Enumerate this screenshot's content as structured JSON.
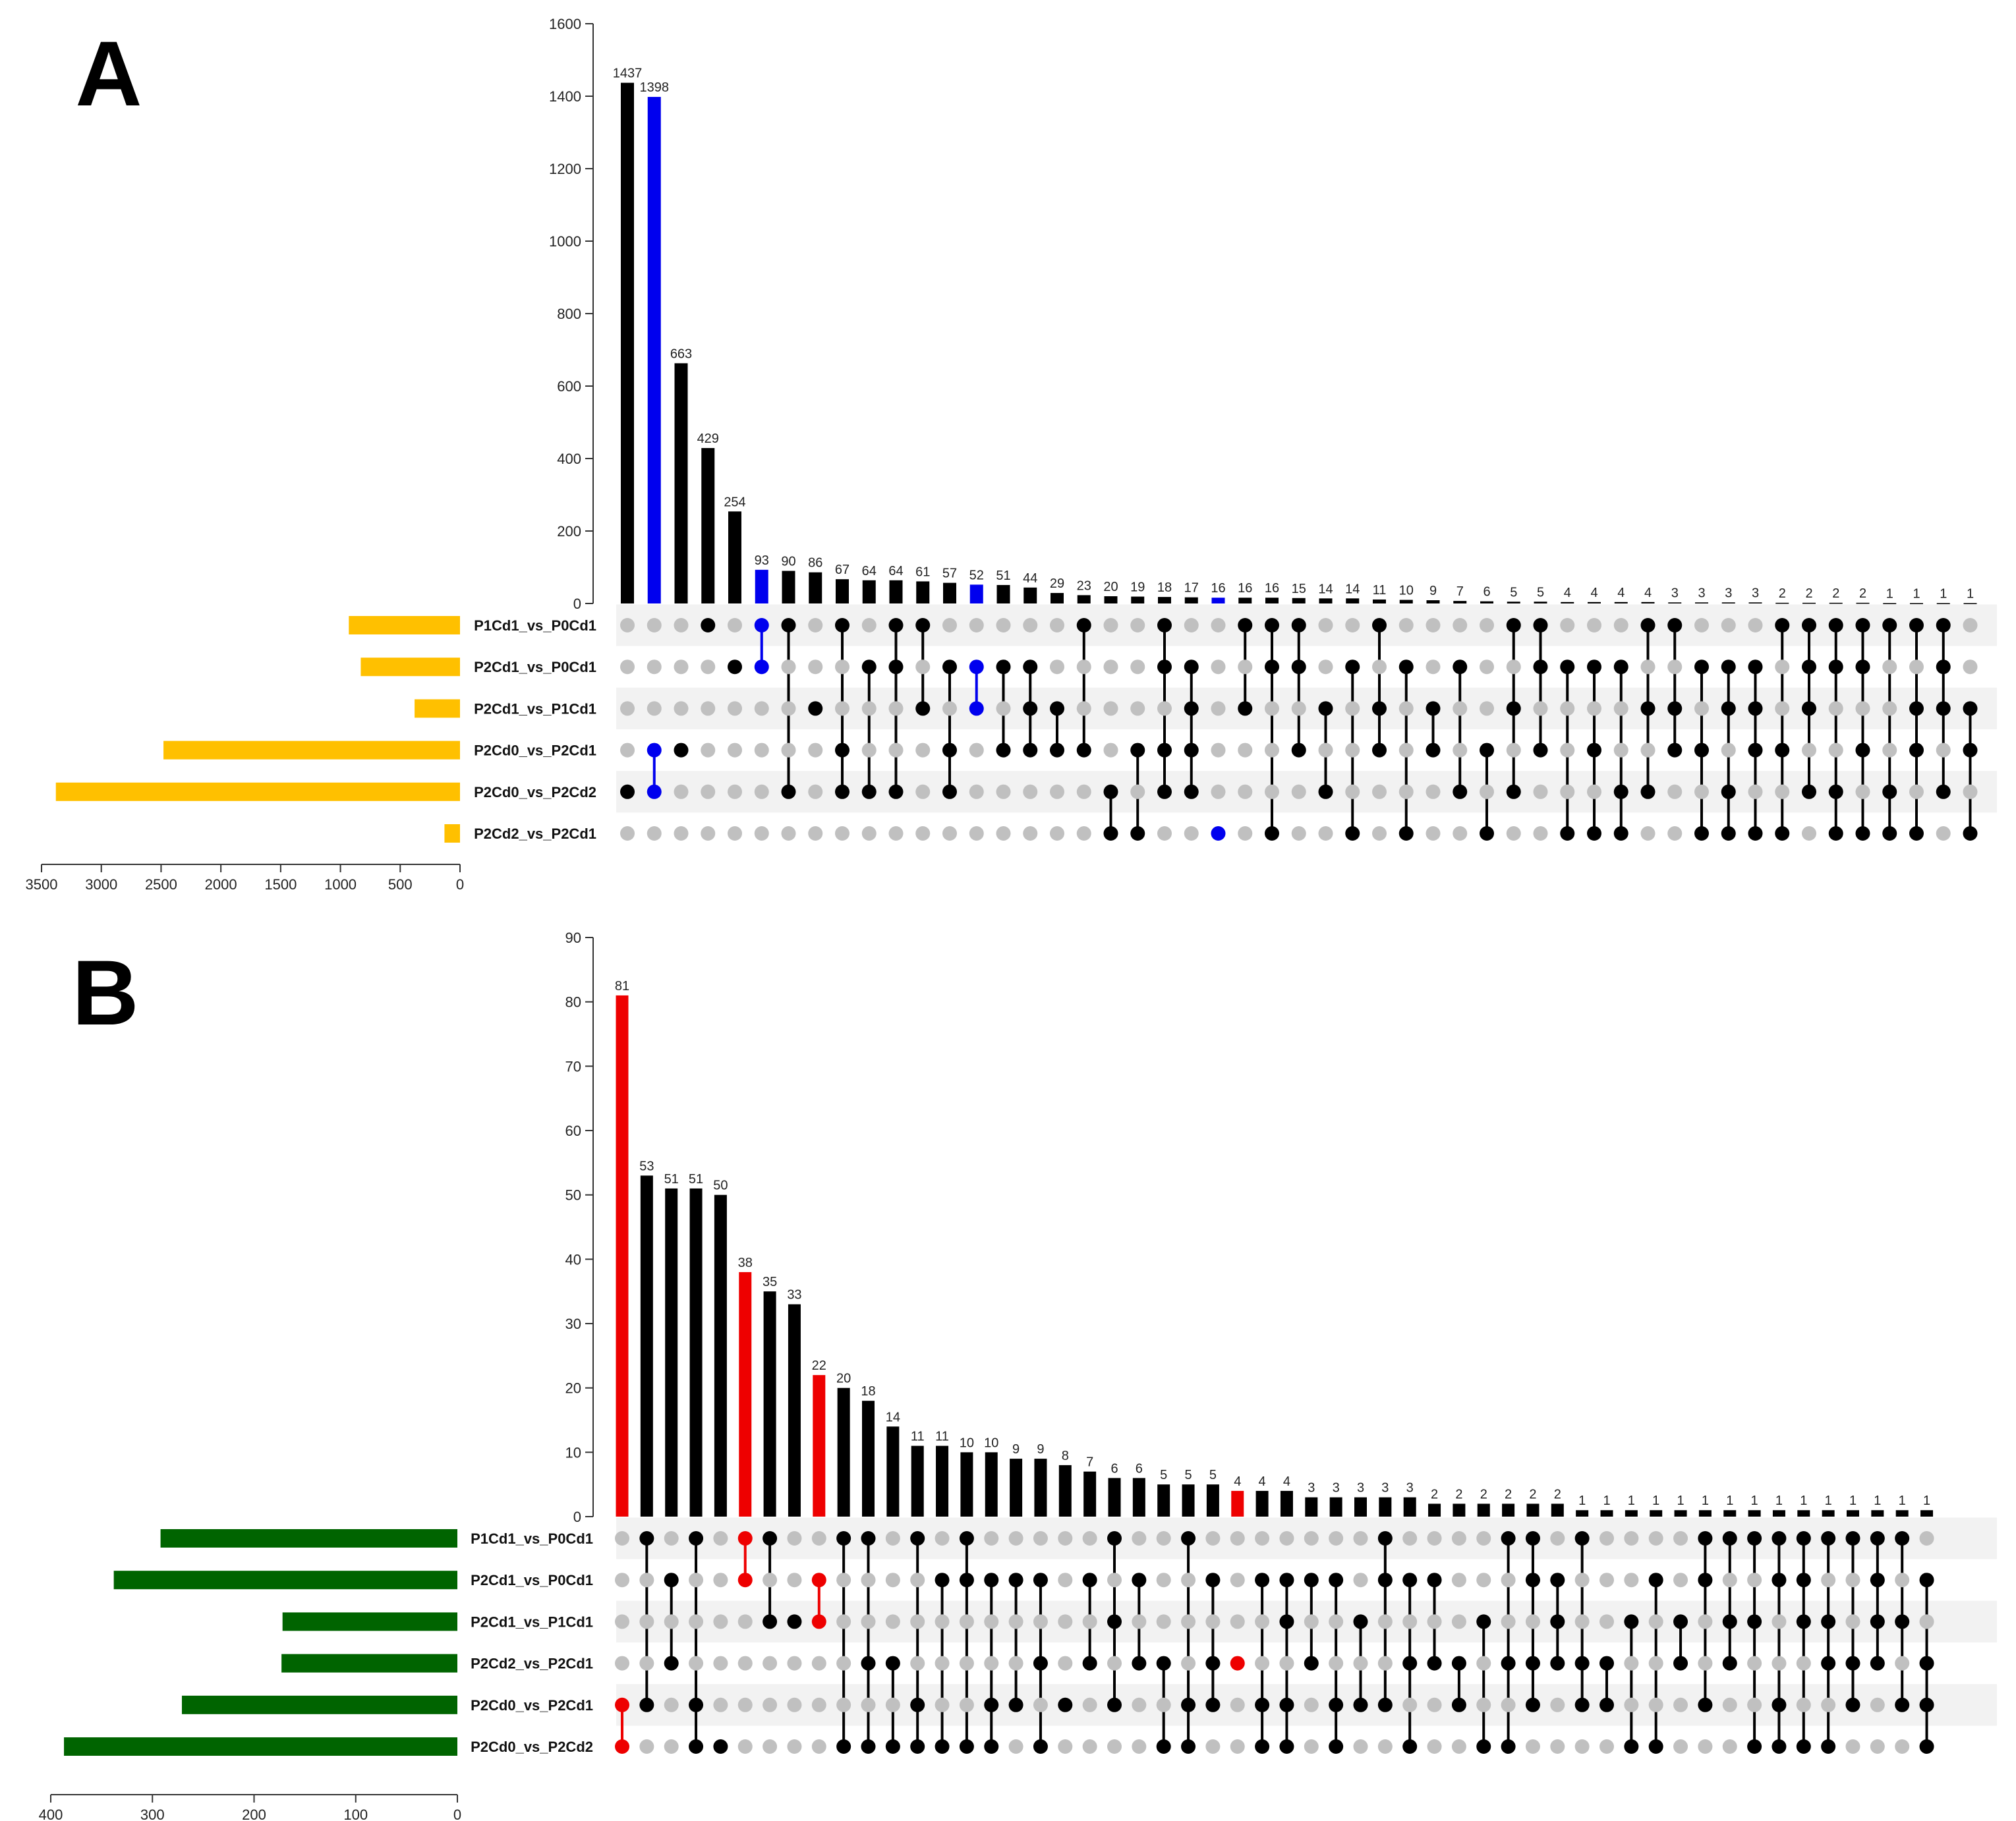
{
  "colors": {
    "bar": "#000000",
    "dot_on": "#000000",
    "dot_off": "#c0c0c0",
    "stripe": "#f2f2f2",
    "highlight_A": "#0000ee",
    "highlight_B": "#ee0000",
    "setbar_A": "#ffc000",
    "setbar_B": "#006400"
  },
  "chart_data": [
    {
      "type": "upset",
      "panel": "A",
      "title": "A",
      "ylim": [
        0,
        1600
      ],
      "yticks": [
        0,
        200,
        400,
        600,
        800,
        1000,
        1200,
        1400,
        1600
      ],
      "sets": [
        "P1Cd1_vs_P0Cd1",
        "P2Cd1_vs_P0Cd1",
        "P2Cd1_vs_P1Cd1",
        "P2Cd0_vs_P2Cd1",
        "P2Cd0_vs_P2Cd2",
        "P2Cd2_vs_P2Cd1"
      ],
      "set_sizes": [
        930,
        830,
        380,
        2480,
        3380,
        130
      ],
      "set_axis": {
        "max": 3500,
        "ticks": [
          3500,
          3000,
          2500,
          2000,
          1500,
          1000,
          500,
          0
        ]
      },
      "intersections": [
        {
          "value": 1437,
          "sets": [
            4
          ]
        },
        {
          "value": 1398,
          "sets": [
            3,
            4
          ],
          "highlight": true
        },
        {
          "value": 663,
          "sets": [
            3
          ]
        },
        {
          "value": 429,
          "sets": [
            0
          ]
        },
        {
          "value": 254,
          "sets": [
            1
          ]
        },
        {
          "value": 93,
          "sets": [
            0,
            1
          ],
          "highlight": true
        },
        {
          "value": 90,
          "sets": [
            0,
            4
          ]
        },
        {
          "value": 86,
          "sets": [
            2
          ]
        },
        {
          "value": 67,
          "sets": [
            0,
            3,
            4
          ]
        },
        {
          "value": 64,
          "sets": [
            1,
            4
          ]
        },
        {
          "value": 64,
          "sets": [
            0,
            1,
            4
          ]
        },
        {
          "value": 61,
          "sets": [
            0,
            2
          ]
        },
        {
          "value": 57,
          "sets": [
            1,
            3,
            4
          ]
        },
        {
          "value": 52,
          "sets": [
            1,
            2
          ],
          "highlight": true
        },
        {
          "value": 51,
          "sets": [
            1,
            3
          ]
        },
        {
          "value": 44,
          "sets": [
            1,
            2,
            3
          ]
        },
        {
          "value": 29,
          "sets": [
            2,
            3
          ]
        },
        {
          "value": 23,
          "sets": [
            0,
            3
          ]
        },
        {
          "value": 20,
          "sets": [
            4,
            5
          ]
        },
        {
          "value": 19,
          "sets": [
            3,
            5
          ]
        },
        {
          "value": 18,
          "sets": [
            0,
            1,
            3,
            4
          ]
        },
        {
          "value": 17,
          "sets": [
            1,
            2,
            3,
            4
          ]
        },
        {
          "value": 16,
          "sets": [
            5
          ],
          "highlight": true
        },
        {
          "value": 16,
          "sets": [
            0,
            2
          ]
        },
        {
          "value": 16,
          "sets": [
            0,
            1,
            5
          ]
        },
        {
          "value": 15,
          "sets": [
            0,
            1,
            3
          ]
        },
        {
          "value": 14,
          "sets": [
            2,
            4
          ]
        },
        {
          "value": 14,
          "sets": [
            1,
            5
          ]
        },
        {
          "value": 11,
          "sets": [
            0,
            2,
            3
          ]
        },
        {
          "value": 10,
          "sets": [
            1,
            5
          ]
        },
        {
          "value": 9,
          "sets": [
            2,
            3
          ]
        },
        {
          "value": 7,
          "sets": [
            1,
            4
          ]
        },
        {
          "value": 6,
          "sets": [
            3,
            5
          ]
        },
        {
          "value": 5,
          "sets": [
            0,
            2,
            4
          ]
        },
        {
          "value": 5,
          "sets": [
            0,
            1,
            3
          ]
        },
        {
          "value": 4,
          "sets": [
            1,
            5
          ]
        },
        {
          "value": 4,
          "sets": [
            1,
            3,
            5
          ]
        },
        {
          "value": 4,
          "sets": [
            1,
            4,
            5
          ]
        },
        {
          "value": 4,
          "sets": [
            0,
            2,
            4
          ]
        },
        {
          "value": 3,
          "sets": [
            0,
            2,
            3
          ]
        },
        {
          "value": 3,
          "sets": [
            1,
            3,
            5
          ]
        },
        {
          "value": 3,
          "sets": [
            1,
            2,
            4,
            5
          ]
        },
        {
          "value": 3,
          "sets": [
            1,
            2,
            3,
            5
          ]
        },
        {
          "value": 2,
          "sets": [
            0,
            3,
            5
          ]
        },
        {
          "value": 2,
          "sets": [
            0,
            1,
            2,
            4
          ]
        },
        {
          "value": 2,
          "sets": [
            0,
            1,
            4,
            5
          ]
        },
        {
          "value": 2,
          "sets": [
            0,
            1,
            3,
            5
          ]
        },
        {
          "value": 1,
          "sets": [
            0,
            4,
            5
          ]
        },
        {
          "value": 1,
          "sets": [
            0,
            2,
            3,
            5
          ]
        },
        {
          "value": 1,
          "sets": [
            0,
            1,
            2,
            4
          ]
        },
        {
          "value": 1,
          "sets": [
            2,
            3,
            5
          ]
        }
      ]
    },
    {
      "type": "upset",
      "panel": "B",
      "title": "B",
      "ylim": [
        0,
        90
      ],
      "yticks": [
        0,
        10,
        20,
        30,
        40,
        50,
        60,
        70,
        80,
        90
      ],
      "sets": [
        "P1Cd1_vs_P0Cd1",
        "P2Cd1_vs_P0Cd1",
        "P2Cd1_vs_P1Cd1",
        "P2Cd2_vs_P2Cd1",
        "P2Cd0_vs_P2Cd1",
        "P2Cd0_vs_P2Cd2"
      ],
      "set_sizes": [
        292,
        338,
        172,
        173,
        271,
        387
      ],
      "set_axis": {
        "max": 400,
        "ticks": [
          400,
          300,
          200,
          100,
          0
        ]
      },
      "intersections": [
        {
          "value": 81,
          "sets": [
            4,
            5
          ],
          "highlight": true
        },
        {
          "value": 53,
          "sets": [
            0,
            4
          ]
        },
        {
          "value": 51,
          "sets": [
            1,
            3
          ]
        },
        {
          "value": 51,
          "sets": [
            0,
            4,
            5
          ]
        },
        {
          "value": 50,
          "sets": [
            5
          ]
        },
        {
          "value": 38,
          "sets": [
            0,
            1
          ],
          "highlight": true
        },
        {
          "value": 35,
          "sets": [
            0,
            2
          ]
        },
        {
          "value": 33,
          "sets": [
            2
          ]
        },
        {
          "value": 22,
          "sets": [
            1,
            2
          ],
          "highlight": true
        },
        {
          "value": 20,
          "sets": [
            0,
            5
          ]
        },
        {
          "value": 18,
          "sets": [
            0,
            3,
            5
          ]
        },
        {
          "value": 14,
          "sets": [
            3,
            5
          ]
        },
        {
          "value": 11,
          "sets": [
            0,
            4,
            5
          ]
        },
        {
          "value": 11,
          "sets": [
            1,
            5
          ]
        },
        {
          "value": 10,
          "sets": [
            0,
            1,
            5
          ]
        },
        {
          "value": 10,
          "sets": [
            1,
            4,
            5
          ]
        },
        {
          "value": 9,
          "sets": [
            1,
            4
          ]
        },
        {
          "value": 9,
          "sets": [
            1,
            3,
            5
          ]
        },
        {
          "value": 8,
          "sets": [
            4
          ]
        },
        {
          "value": 7,
          "sets": [
            1,
            3
          ]
        },
        {
          "value": 6,
          "sets": [
            0,
            2,
            4
          ]
        },
        {
          "value": 6,
          "sets": [
            1,
            3
          ]
        },
        {
          "value": 5,
          "sets": [
            3,
            5
          ]
        },
        {
          "value": 5,
          "sets": [
            0,
            4,
            5
          ]
        },
        {
          "value": 5,
          "sets": [
            1,
            3,
            4
          ]
        },
        {
          "value": 4,
          "sets": [
            3
          ],
          "highlight": true
        },
        {
          "value": 4,
          "sets": [
            1,
            4,
            5
          ]
        },
        {
          "value": 4,
          "sets": [
            1,
            2,
            4,
            5
          ]
        },
        {
          "value": 3,
          "sets": [
            1,
            3
          ]
        },
        {
          "value": 3,
          "sets": [
            1,
            4,
            5
          ]
        },
        {
          "value": 3,
          "sets": [
            2,
            4
          ]
        },
        {
          "value": 3,
          "sets": [
            0,
            1,
            4
          ]
        },
        {
          "value": 3,
          "sets": [
            1,
            3,
            5
          ]
        },
        {
          "value": 2,
          "sets": [
            1,
            3
          ]
        },
        {
          "value": 2,
          "sets": [
            3,
            4
          ]
        },
        {
          "value": 2,
          "sets": [
            2,
            5
          ]
        },
        {
          "value": 2,
          "sets": [
            0,
            3,
            5
          ]
        },
        {
          "value": 2,
          "sets": [
            0,
            1,
            3,
            4
          ]
        },
        {
          "value": 2,
          "sets": [
            1,
            2,
            3
          ]
        },
        {
          "value": 1,
          "sets": [
            0,
            3,
            4
          ]
        },
        {
          "value": 1,
          "sets": [
            3,
            4
          ]
        },
        {
          "value": 1,
          "sets": [
            2,
            5
          ]
        },
        {
          "value": 1,
          "sets": [
            1,
            5
          ]
        },
        {
          "value": 1,
          "sets": [
            2,
            3
          ]
        },
        {
          "value": 1,
          "sets": [
            0,
            1,
            4
          ]
        },
        {
          "value": 1,
          "sets": [
            0,
            2,
            3
          ]
        },
        {
          "value": 1,
          "sets": [
            0,
            2,
            5
          ]
        },
        {
          "value": 1,
          "sets": [
            0,
            1,
            4,
            5
          ]
        },
        {
          "value": 1,
          "sets": [
            0,
            1,
            2,
            5
          ]
        },
        {
          "value": 1,
          "sets": [
            0,
            2,
            3,
            5
          ]
        },
        {
          "value": 1,
          "sets": [
            0,
            3,
            4
          ]
        },
        {
          "value": 1,
          "sets": [
            0,
            1,
            2,
            3
          ]
        },
        {
          "value": 1,
          "sets": [
            0,
            2,
            4
          ]
        },
        {
          "value": 1,
          "sets": [
            1,
            3,
            4,
            5
          ]
        }
      ]
    }
  ]
}
